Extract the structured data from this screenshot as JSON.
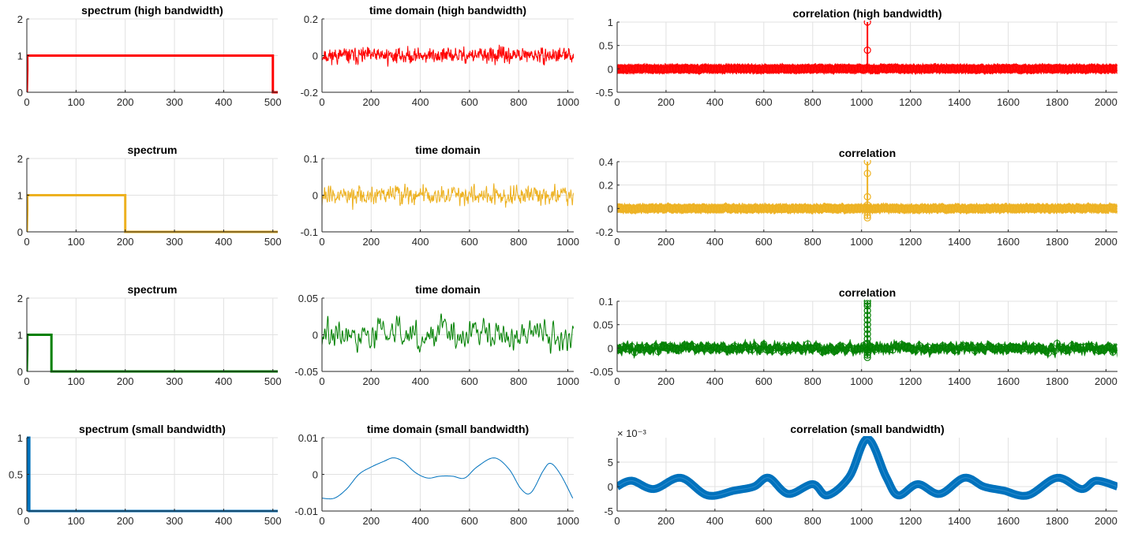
{
  "chart_data": [
    {
      "id": "spec1",
      "type": "line",
      "title": "spectrum (high bandwidth)",
      "xlim": [
        0,
        510
      ],
      "ylim": [
        0,
        2
      ],
      "xticks": [
        0,
        100,
        200,
        300,
        400,
        500
      ],
      "xtick_labels": [
        "0",
        "100",
        "200",
        "300",
        "400",
        "500"
      ],
      "yticks": [
        0,
        1,
        2
      ],
      "ytick_labels": [
        "0",
        "1",
        "2"
      ],
      "color": "#ff0000",
      "grid": true,
      "series": [
        {
          "x": [
            0,
            1,
            1,
            500,
            500,
            510
          ],
          "y": [
            0,
            0.6,
            1,
            1,
            0,
            0
          ]
        }
      ]
    },
    {
      "id": "time1",
      "type": "line",
      "title": "time domain (high bandwidth)",
      "xlim": [
        0,
        1024
      ],
      "ylim": [
        -0.2,
        0.2
      ],
      "xticks": [
        0,
        200,
        400,
        600,
        800,
        1000
      ],
      "xtick_labels": [
        "0",
        "200",
        "400",
        "600",
        "800",
        "1000"
      ],
      "yticks": [
        -0.2,
        0,
        0.2
      ],
      "ytick_labels": [
        "-0.2",
        "0",
        "0.2"
      ],
      "color": "#ff0000",
      "grid": true,
      "series": [
        {
          "kind": "noise",
          "n": 1024,
          "amplitude": 0.03,
          "smooth": 1,
          "seed": 11
        }
      ]
    },
    {
      "id": "corr1",
      "type": "stem",
      "title": "correlation (high bandwidth)",
      "xlim": [
        0,
        2047
      ],
      "ylim": [
        -0.5,
        1
      ],
      "xticks": [
        0,
        200,
        400,
        600,
        800,
        1000,
        1200,
        1400,
        1600,
        1800,
        2000
      ],
      "xtick_labels": [
        "0",
        "200",
        "400",
        "600",
        "800",
        "1000",
        "1200",
        "1400",
        "1600",
        "1800",
        "2000"
      ],
      "yticks": [
        -0.5,
        0,
        0.5,
        1
      ],
      "ytick_labels": [
        "-0.5",
        "0",
        "0.5",
        "1"
      ],
      "color": "#ff0000",
      "grid": true,
      "series": [
        {
          "kind": "corr",
          "peak_x": 1024,
          "peak_y": [
            1,
            0.4
          ],
          "noise": 0.022,
          "smooth": 1,
          "seed": 21
        }
      ]
    },
    {
      "id": "spec2",
      "type": "line",
      "title": "spectrum",
      "xlim": [
        0,
        510
      ],
      "ylim": [
        0,
        2
      ],
      "xticks": [
        0,
        100,
        200,
        300,
        400,
        500
      ],
      "xtick_labels": [
        "0",
        "100",
        "200",
        "300",
        "400",
        "500"
      ],
      "yticks": [
        0,
        1,
        2
      ],
      "ytick_labels": [
        "0",
        "1",
        "2"
      ],
      "color": "#edb120",
      "grid": true,
      "series": [
        {
          "x": [
            0,
            1,
            1,
            200,
            200,
            510
          ],
          "y": [
            0,
            0.6,
            1,
            1,
            0,
            0
          ]
        }
      ]
    },
    {
      "id": "time2",
      "type": "line",
      "title": "time domain",
      "xlim": [
        0,
        1024
      ],
      "ylim": [
        -0.1,
        0.1
      ],
      "xticks": [
        0,
        200,
        400,
        600,
        800,
        1000
      ],
      "xtick_labels": [
        "0",
        "200",
        "400",
        "600",
        "800",
        "1000"
      ],
      "yticks": [
        -0.1,
        0,
        0.1
      ],
      "ytick_labels": [
        "-0.1",
        "0",
        "0.1"
      ],
      "color": "#edb120",
      "grid": true,
      "series": [
        {
          "kind": "noise",
          "n": 1024,
          "amplitude": 0.02,
          "smooth": 2,
          "seed": 12
        }
      ]
    },
    {
      "id": "corr2",
      "type": "stem",
      "title": "correlation",
      "xlim": [
        0,
        2047
      ],
      "ylim": [
        -0.2,
        0.4
      ],
      "xticks": [
        0,
        200,
        400,
        600,
        800,
        1000,
        1200,
        1400,
        1600,
        1800,
        2000
      ],
      "xtick_labels": [
        "0",
        "200",
        "400",
        "600",
        "800",
        "1000",
        "1200",
        "1400",
        "1600",
        "1800",
        "2000"
      ],
      "yticks": [
        -0.2,
        0,
        0.2,
        0.4
      ],
      "ytick_labels": [
        "-0.2",
        "0",
        "0.2",
        "0.4"
      ],
      "color": "#edb120",
      "grid": true,
      "series": [
        {
          "kind": "corr",
          "peak_x": 1024,
          "peak_y": [
            0.4,
            0.3,
            0.1,
            0.03,
            -0.03,
            -0.06,
            -0.08
          ],
          "noise": 0.008,
          "smooth": 2,
          "seed": 22
        }
      ]
    },
    {
      "id": "spec3",
      "type": "line",
      "title": "spectrum",
      "xlim": [
        0,
        510
      ],
      "ylim": [
        0,
        2
      ],
      "xticks": [
        0,
        100,
        200,
        300,
        400,
        500
      ],
      "xtick_labels": [
        "0",
        "100",
        "200",
        "300",
        "400",
        "500"
      ],
      "yticks": [
        0,
        1,
        2
      ],
      "ytick_labels": [
        "0",
        "1",
        "2"
      ],
      "color": "#008000",
      "grid": true,
      "series": [
        {
          "x": [
            0,
            1,
            1,
            50,
            50,
            510
          ],
          "y": [
            0,
            0.6,
            1,
            1,
            0,
            0
          ]
        }
      ]
    },
    {
      "id": "time3",
      "type": "line",
      "title": "time domain",
      "xlim": [
        0,
        1024
      ],
      "ylim": [
        -0.05,
        0.05
      ],
      "xticks": [
        0,
        200,
        400,
        600,
        800,
        1000
      ],
      "xtick_labels": [
        "0",
        "200",
        "400",
        "600",
        "800",
        "1000"
      ],
      "yticks": [
        -0.05,
        0,
        0.05
      ],
      "ytick_labels": [
        "-0.05",
        "0",
        "0.05"
      ],
      "color": "#008000",
      "grid": true,
      "series": [
        {
          "kind": "noise",
          "n": 1024,
          "amplitude": 0.009,
          "smooth": 8,
          "seed": 13
        }
      ]
    },
    {
      "id": "corr3",
      "type": "stem",
      "title": "correlation",
      "xlim": [
        0,
        2047
      ],
      "ylim": [
        -0.05,
        0.1
      ],
      "xticks": [
        0,
        200,
        400,
        600,
        800,
        1000,
        1200,
        1400,
        1600,
        1800,
        2000
      ],
      "xtick_labels": [
        "0",
        "200",
        "400",
        "600",
        "800",
        "1000",
        "1200",
        "1400",
        "1600",
        "1800",
        "2000"
      ],
      "yticks": [
        -0.05,
        0,
        0.05,
        0.1
      ],
      "ytick_labels": [
        "-0.05",
        "0",
        "0.05",
        "0.1"
      ],
      "color": "#008000",
      "grid": true,
      "series": [
        {
          "kind": "corr",
          "peak_x": 1024,
          "peak_y": [
            0.1,
            0.095,
            0.09,
            0.08,
            0.07,
            0.06,
            0.05,
            0.04,
            0.03,
            0.02,
            0.01,
            -0.005,
            -0.01,
            -0.015,
            -0.02
          ],
          "noise": 0.004,
          "smooth": 8,
          "seed": 23
        }
      ]
    },
    {
      "id": "spec4",
      "type": "line",
      "title": "spectrum (small bandwidth)",
      "xlim": [
        0,
        510
      ],
      "ylim": [
        0,
        1
      ],
      "xticks": [
        0,
        100,
        200,
        300,
        400,
        500
      ],
      "xtick_labels": [
        "0",
        "100",
        "200",
        "300",
        "400",
        "500"
      ],
      "yticks": [
        0,
        0.5,
        1
      ],
      "ytick_labels": [
        "0",
        "0.5",
        "1"
      ],
      "color": "#0072bd",
      "grid": true,
      "series": [
        {
          "x": [
            0,
            1,
            1,
            2,
            2,
            5,
            5,
            510
          ],
          "y": [
            0,
            0.6,
            0.6,
            0.6,
            1,
            1,
            0,
            0
          ]
        }
      ]
    },
    {
      "id": "time4",
      "type": "line",
      "title": "time domain (small bandwidth)",
      "xlim": [
        0,
        1024
      ],
      "ylim": [
        -0.01,
        0.01
      ],
      "xticks": [
        0,
        200,
        400,
        600,
        800,
        1000
      ],
      "xtick_labels": [
        "0",
        "200",
        "400",
        "600",
        "800",
        "1000"
      ],
      "yticks": [
        -0.01,
        0,
        0.01
      ],
      "ytick_labels": [
        "-0.01",
        "0",
        "0.01"
      ],
      "color": "#0072bd",
      "grid": true,
      "series": [
        {
          "x": [
            0,
            50,
            100,
            150,
            200,
            250,
            290,
            330,
            380,
            430,
            480,
            530,
            580,
            630,
            700,
            760,
            810,
            850,
            900,
            930,
            970,
            1020
          ],
          "y": [
            -0.0065,
            -0.0065,
            -0.004,
            0,
            0.002,
            0.0035,
            0.0045,
            0.0035,
            0.0005,
            -0.001,
            -0.0005,
            -0.0005,
            -0.001,
            0.002,
            0.0045,
            0.0015,
            -0.004,
            -0.005,
            0.001,
            0.003,
            0,
            -0.0065
          ]
        }
      ]
    },
    {
      "id": "corr4",
      "type": "stem",
      "title": "correlation (small bandwidth)",
      "xlim": [
        0,
        2047
      ],
      "ylim": [
        -5,
        10
      ],
      "exponent": "× 10⁻³",
      "xticks": [
        0,
        200,
        400,
        600,
        800,
        1000,
        1200,
        1400,
        1600,
        1800,
        2000
      ],
      "xtick_labels": [
        "0",
        "200",
        "400",
        "600",
        "800",
        "1000",
        "1200",
        "1400",
        "1600",
        "1800",
        "2000"
      ],
      "yticks": [
        -5,
        0,
        5
      ],
      "ytick_labels": [
        "-5",
        "0",
        "5"
      ],
      "color": "#0072bd",
      "grid": true,
      "series": [
        {
          "kind": "dense",
          "x": [
            0,
            60,
            150,
            260,
            370,
            480,
            560,
            620,
            700,
            800,
            860,
            950,
            1024,
            1100,
            1150,
            1230,
            1320,
            1420,
            1500,
            1580,
            1680,
            1800,
            1900,
            1960,
            2047
          ],
          "y": [
            0,
            1.2,
            -0.5,
            1.8,
            -1.8,
            -0.8,
            0,
            1.8,
            -1.5,
            0.5,
            -1.8,
            2,
            9.8,
            2,
            -1.8,
            0.5,
            -1.5,
            1.8,
            0,
            -0.8,
            -1.8,
            1.8,
            -0.5,
            1.2,
            0
          ]
        }
      ]
    }
  ]
}
